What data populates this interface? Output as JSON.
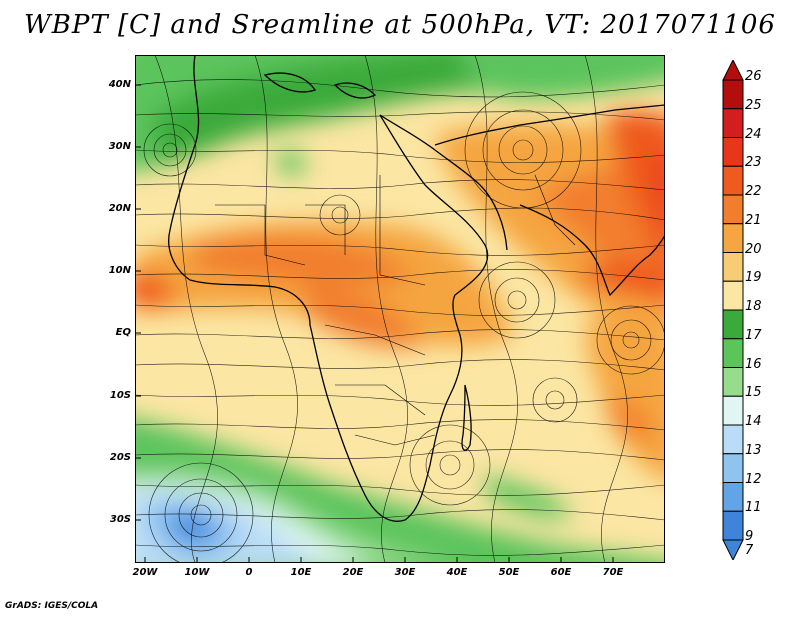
{
  "title": "WBPT [C] and Sreamline at 500hPa, VT: 2017071106",
  "credit": "GrADS: IGES/COLA",
  "map": {
    "lat_labels": [
      "40N",
      "30N",
      "20N",
      "10N",
      "EQ",
      "10S",
      "20S",
      "30S"
    ],
    "lon_labels": [
      "20W",
      "10W",
      "0",
      "10E",
      "20E",
      "30E",
      "40E",
      "50E",
      "60E",
      "70E"
    ],
    "lat_range": [
      -36,
      44
    ],
    "lon_range": [
      -22,
      80
    ]
  },
  "colorbar": {
    "labels": [
      "26",
      "25",
      "24",
      "23",
      "22",
      "21",
      "20",
      "19",
      "18",
      "17",
      "16",
      "15",
      "14",
      "13",
      "12",
      "11",
      "9",
      "7"
    ],
    "colors": [
      "#b40d0d",
      "#d21e1e",
      "#e8361b",
      "#ef5a1e",
      "#f27e2d",
      "#f5a541",
      "#f8cc74",
      "#fbe6a3",
      "#3aaa3a",
      "#5bc45b",
      "#97dc8d",
      "#e0f6f2",
      "#b9dcf7",
      "#8fc3f0",
      "#63a4e6",
      "#3e84db"
    ]
  },
  "chart_data": {
    "type": "heatmap",
    "title": "WBPT [C] and Sreamline at 500hPa, VT: 2017071106",
    "xlabel": "",
    "ylabel": "",
    "xlim": [
      -22,
      80
    ],
    "ylim": [
      -36,
      44
    ],
    "color_levels": [
      7,
      9,
      11,
      12,
      13,
      14,
      15,
      16,
      17,
      18,
      19,
      20,
      21,
      22,
      23,
      24,
      25,
      26
    ]
  }
}
